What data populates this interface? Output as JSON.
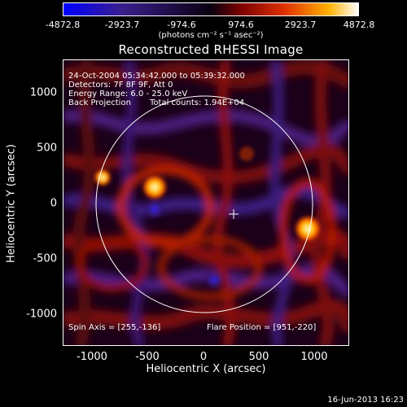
{
  "colorbar": {
    "ticks": [
      "-4872.8",
      "-2923.7",
      "-974.6",
      "974.6",
      "2923.7",
      "4872.8"
    ],
    "units": "(photons cm⁻² s⁻¹ asec⁻²)"
  },
  "title": "Reconstructed RHESSI Image",
  "info": {
    "time": "24-Oct-2004 05:34:42.000 to 05:39:32.000",
    "detectors": "Detectors: 7F 8F 9F, Att 0",
    "energy": "Energy Range: 6.0 - 25.0 keV",
    "method": "Back Projection",
    "counts": "Total counts: 1.94E+04",
    "spin_axis": "Spin Axis = [255,-136]",
    "flare_position": "Flare Position = [951,-220]"
  },
  "axes": {
    "xlabel": "Heliocentric X (arcsec)",
    "ylabel": "Heliocentric Y (arcsec)",
    "xticks": [
      "-1000",
      "-500",
      "0",
      "500",
      "1000"
    ],
    "yticks": [
      "1000",
      "500",
      "0",
      "-500",
      "-1000"
    ]
  },
  "footer_date": "16-Jun-2013 16:23"
}
